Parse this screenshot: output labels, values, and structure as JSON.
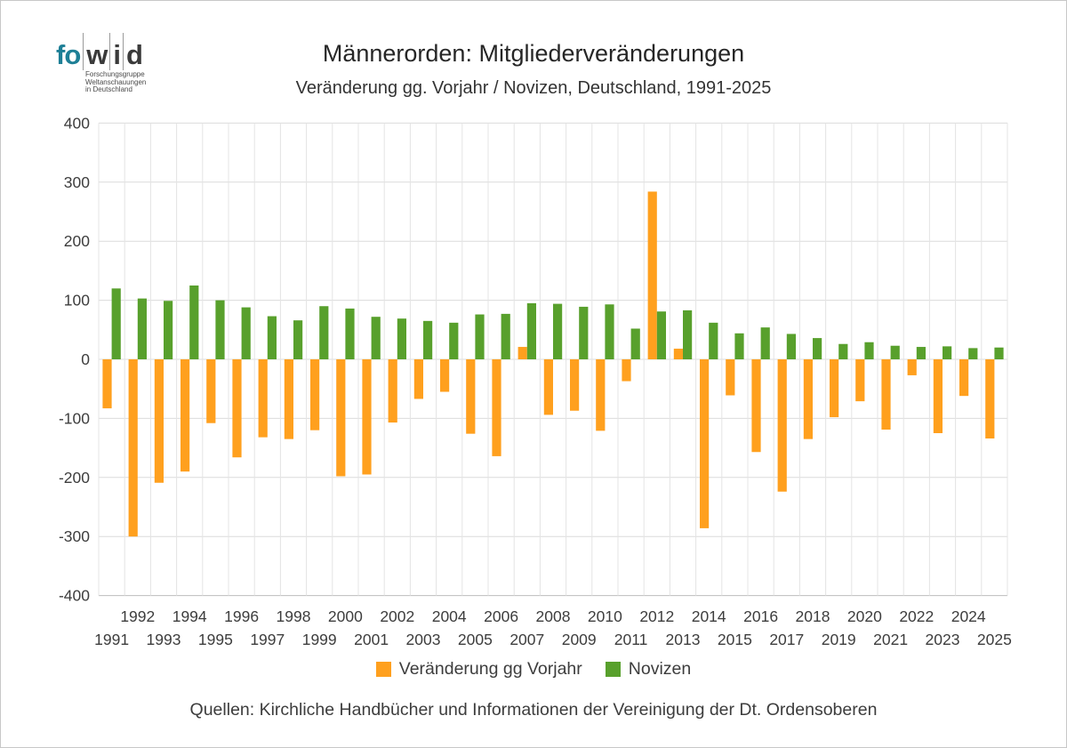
{
  "logo": {
    "part_fo": "fo",
    "part_w": "w",
    "part_i": "i",
    "part_d": "d",
    "subtext_line1": "Forschungsgruppe",
    "subtext_line2": "Weltanschauungen",
    "subtext_line3": "in Deutschland",
    "accent_color": "#1e7f96"
  },
  "header": {
    "title": "Männerorden: Mitgliederveränderungen",
    "subtitle": "Veränderung gg. Vorjahr / Novizen, Deutschland, 1991-2025"
  },
  "footer": {
    "source": "Quellen: Kirchliche Handbücher und Informationen der Vereinigung der Dt. Ordensoberen"
  },
  "chart_data": {
    "type": "bar",
    "title": "Männerorden: Mitgliederveränderungen",
    "subtitle": "Veränderung gg. Vorjahr / Novizen, Deutschland, 1991-2025",
    "categories": [
      "1991",
      "1992",
      "1993",
      "1994",
      "1995",
      "1996",
      "1997",
      "1998",
      "1999",
      "2000",
      "2001",
      "2002",
      "2003",
      "2004",
      "2005",
      "2006",
      "2007",
      "2008",
      "2009",
      "2010",
      "2011",
      "2012",
      "2013",
      "2014",
      "2015",
      "2016",
      "2017",
      "2018",
      "2019",
      "2020",
      "2021",
      "2022",
      "2023",
      "2024",
      "2025"
    ],
    "series": [
      {
        "name": "Veränderung gg Vorjahr",
        "color": "#FFA01E",
        "values": [
          -83,
          -300,
          -209,
          -190,
          -108,
          -166,
          -132,
          -135,
          -120,
          -198,
          -195,
          -107,
          -67,
          -55,
          -126,
          -164,
          21,
          -94,
          -87,
          -121,
          -37,
          284,
          18,
          -286,
          -61,
          -157,
          -224,
          -135,
          -98,
          -71,
          -119,
          -27,
          -125,
          -62,
          -134
        ]
      },
      {
        "name": "Novizen",
        "color": "#58A02C",
        "values": [
          120,
          103,
          99,
          125,
          100,
          88,
          73,
          66,
          90,
          86,
          72,
          69,
          65,
          62,
          76,
          77,
          95,
          94,
          89,
          93,
          52,
          81,
          83,
          62,
          44,
          54,
          43,
          36,
          26,
          29,
          23,
          21,
          22,
          19,
          20
        ]
      }
    ],
    "xlabel": "",
    "ylabel": "",
    "ylim": [
      -400,
      400
    ],
    "ytick_step": 100,
    "grid": true,
    "legend_position": "bottom"
  }
}
